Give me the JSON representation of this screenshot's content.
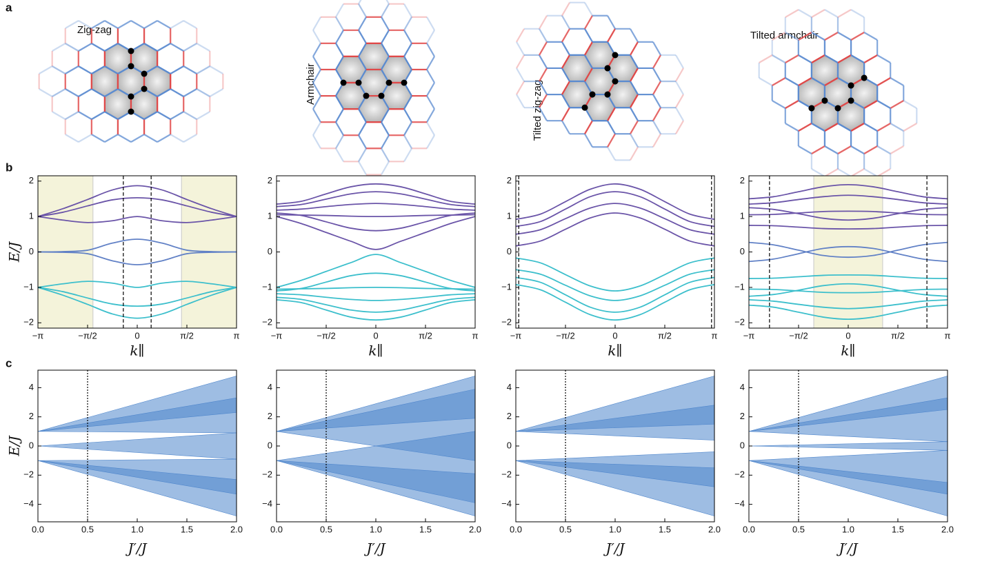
{
  "panel_labels": [
    "a",
    "b",
    "c"
  ],
  "lattices": [
    {
      "label": "Zig-zag"
    },
    {
      "label": "Armchair"
    },
    {
      "label": "Tilted zig-zag"
    },
    {
      "label": "Tilted armchair"
    }
  ],
  "chart_data": [
    {
      "type": "line",
      "ylabel": "E/J",
      "xlabel": "k∥",
      "xlim": [
        -3.1416,
        3.1416
      ],
      "ylim": [
        -2.15,
        2.15
      ],
      "x": [
        -3.1416,
        -2.3562,
        -1.5708,
        -0.7854,
        0,
        0.7854,
        1.5708,
        2.3562,
        3.1416
      ],
      "xticks": [
        {
          "value": -3.1416,
          "label": "−π"
        },
        {
          "value": -1.5708,
          "label": "−π/2"
        },
        0,
        {
          "value": 1.5708,
          "label": "π/2"
        },
        {
          "value": 3.1416,
          "label": "π"
        }
      ],
      "yticks": [
        {
          "value": -2,
          "label": "−2"
        },
        {
          "value": -1,
          "label": "−1"
        },
        0,
        1,
        2
      ],
      "shade": [
        [
          -3.1416,
          -1.4
        ],
        [
          1.4,
          3.1416
        ]
      ],
      "vlines": [
        -0.44,
        0.44
      ],
      "series": [
        {
          "color": "#6a54a8",
          "values": [
            1,
            1.22,
            1.48,
            1.75,
            1.87,
            1.75,
            1.48,
            1.22,
            1
          ]
        },
        {
          "color": "#6a54a8",
          "values": [
            1,
            1.12,
            1.3,
            1.47,
            1.53,
            1.47,
            1.3,
            1.12,
            1
          ]
        },
        {
          "color": "#6a54a8",
          "values": [
            1,
            0.9,
            0.83,
            0.88,
            1.0,
            0.88,
            0.83,
            0.9,
            1
          ]
        },
        {
          "color": "#6181c6",
          "values": [
            0,
            0.01,
            0.05,
            0.25,
            0.36,
            0.25,
            0.05,
            0.01,
            0
          ]
        },
        {
          "color": "#6181c6",
          "values": [
            0,
            -0.01,
            -0.05,
            -0.25,
            -0.36,
            -0.25,
            -0.05,
            -0.01,
            0
          ]
        },
        {
          "color": "#3cbfcc",
          "values": [
            -1,
            -0.9,
            -0.83,
            -0.88,
            -1.0,
            -0.88,
            -0.83,
            -0.9,
            -1
          ]
        },
        {
          "color": "#3cbfcc",
          "values": [
            -1,
            -1.12,
            -1.3,
            -1.47,
            -1.53,
            -1.47,
            -1.3,
            -1.12,
            -1
          ]
        },
        {
          "color": "#3cbfcc",
          "values": [
            -1,
            -1.22,
            -1.48,
            -1.75,
            -1.87,
            -1.75,
            -1.48,
            -1.22,
            -1
          ]
        }
      ]
    },
    {
      "type": "line",
      "xlabel": "k∥",
      "xlim": [
        -3.1416,
        3.1416
      ],
      "ylim": [
        -2.15,
        2.15
      ],
      "x": [
        -3.1416,
        -2.3562,
        -1.5708,
        -0.7854,
        0,
        0.7854,
        1.5708,
        2.3562,
        3.1416
      ],
      "xticks": [
        {
          "value": -3.1416,
          "label": "−π"
        },
        {
          "value": -1.5708,
          "label": "−π/2"
        },
        0,
        {
          "value": 1.5708,
          "label": "π/2"
        },
        {
          "value": 3.1416,
          "label": "π"
        }
      ],
      "yticks": [
        {
          "value": -2,
          "label": "−2"
        },
        {
          "value": -1,
          "label": "−1"
        },
        0,
        1,
        2
      ],
      "series": [
        {
          "color": "#6a54a8",
          "values": [
            1.35,
            1.43,
            1.64,
            1.84,
            1.92,
            1.84,
            1.64,
            1.43,
            1.35
          ]
        },
        {
          "color": "#6a54a8",
          "values": [
            1.28,
            1.34,
            1.49,
            1.64,
            1.7,
            1.64,
            1.49,
            1.34,
            1.28
          ]
        },
        {
          "color": "#6a54a8",
          "values": [
            1.18,
            1.21,
            1.28,
            1.34,
            1.37,
            1.34,
            1.28,
            1.21,
            1.18
          ]
        },
        {
          "color": "#6a54a8",
          "values": [
            1.05,
            1.04,
            1.03,
            1.01,
            1.0,
            1.01,
            1.03,
            1.04,
            1.05
          ]
        },
        {
          "color": "#6a54a8",
          "values": [
            1.1,
            1.03,
            0.85,
            0.67,
            0.6,
            0.67,
            0.85,
            1.03,
            1.1
          ]
        },
        {
          "color": "#6a54a8",
          "values": [
            1.0,
            0.8,
            0.55,
            0.3,
            0.07,
            0.3,
            0.55,
            0.8,
            1.0
          ]
        },
        {
          "color": "#3cbfcc",
          "values": [
            -1.0,
            -0.8,
            -0.55,
            -0.3,
            -0.07,
            -0.3,
            -0.55,
            -0.8,
            -1.0
          ]
        },
        {
          "color": "#3cbfcc",
          "values": [
            -1.1,
            -1.03,
            -0.85,
            -0.67,
            -0.6,
            -0.67,
            -0.85,
            -1.03,
            -1.1
          ]
        },
        {
          "color": "#3cbfcc",
          "values": [
            -1.05,
            -1.04,
            -1.03,
            -1.01,
            -1.0,
            -1.01,
            -1.03,
            -1.04,
            -1.05
          ]
        },
        {
          "color": "#3cbfcc",
          "values": [
            -1.18,
            -1.21,
            -1.28,
            -1.34,
            -1.37,
            -1.34,
            -1.28,
            -1.21,
            -1.18
          ]
        },
        {
          "color": "#3cbfcc",
          "values": [
            -1.28,
            -1.34,
            -1.49,
            -1.64,
            -1.7,
            -1.64,
            -1.49,
            -1.34,
            -1.28
          ]
        },
        {
          "color": "#3cbfcc",
          "values": [
            -1.35,
            -1.43,
            -1.64,
            -1.84,
            -1.92,
            -1.84,
            -1.64,
            -1.43,
            -1.35
          ]
        }
      ]
    },
    {
      "type": "line",
      "xlabel": "k∥",
      "xlim": [
        -3.1416,
        3.1416
      ],
      "ylim": [
        -2.15,
        2.15
      ],
      "x": [
        -3.1416,
        -2.3562,
        -1.5708,
        -0.7854,
        0,
        0.7854,
        1.5708,
        2.3562,
        3.1416
      ],
      "xticks": [
        {
          "value": -3.1416,
          "label": "−π"
        },
        {
          "value": -1.5708,
          "label": "−π/2"
        },
        0,
        {
          "value": 1.5708,
          "label": "π/2"
        },
        {
          "value": 3.1416,
          "label": "π"
        }
      ],
      "yticks": [
        {
          "value": -2,
          "label": "−2"
        },
        {
          "value": -1,
          "label": "−1"
        },
        0,
        1,
        2
      ],
      "vlines": [
        -3.05,
        3.05
      ],
      "series": [
        {
          "color": "#6a54a8",
          "values": [
            0.92,
            1.07,
            1.42,
            1.77,
            1.92,
            1.77,
            1.42,
            1.07,
            0.92
          ]
        },
        {
          "color": "#6a54a8",
          "values": [
            0.72,
            0.86,
            1.21,
            1.56,
            1.7,
            1.56,
            1.21,
            0.86,
            0.72
          ]
        },
        {
          "color": "#6a54a8",
          "values": [
            0.5,
            0.63,
            0.94,
            1.24,
            1.37,
            1.24,
            0.94,
            0.63,
            0.5
          ]
        },
        {
          "color": "#6a54a8",
          "values": [
            0.17,
            0.31,
            0.64,
            0.96,
            1.1,
            0.96,
            0.64,
            0.31,
            0.17
          ]
        },
        {
          "color": "#3cbfcc",
          "values": [
            -0.17,
            -0.31,
            -0.64,
            -0.96,
            -1.1,
            -0.96,
            -0.64,
            -0.31,
            -0.17
          ]
        },
        {
          "color": "#3cbfcc",
          "values": [
            -0.5,
            -0.63,
            -0.94,
            -1.24,
            -1.37,
            -1.24,
            -0.94,
            -0.63,
            -0.5
          ]
        },
        {
          "color": "#3cbfcc",
          "values": [
            -0.72,
            -0.86,
            -1.21,
            -1.56,
            -1.7,
            -1.56,
            -1.21,
            -0.86,
            -0.72
          ]
        },
        {
          "color": "#3cbfcc",
          "values": [
            -0.92,
            -1.07,
            -1.42,
            -1.77,
            -1.92,
            -1.77,
            -1.42,
            -1.07,
            -0.92
          ]
        }
      ]
    },
    {
      "type": "line",
      "xlabel": "k∥",
      "xlim": [
        -3.1416,
        3.1416
      ],
      "ylim": [
        -2.15,
        2.15
      ],
      "x": [
        -3.1416,
        -2.3562,
        -1.5708,
        -0.7854,
        0,
        0.7854,
        1.5708,
        2.3562,
        3.1416
      ],
      "xticks": [
        {
          "value": -3.1416,
          "label": "−π"
        },
        {
          "value": -1.5708,
          "label": "−π/2"
        },
        0,
        {
          "value": 1.5708,
          "label": "π/2"
        },
        {
          "value": 3.1416,
          "label": "π"
        }
      ],
      "yticks": [
        {
          "value": -2,
          "label": "−2"
        },
        {
          "value": -1,
          "label": "−1"
        },
        0,
        1,
        2
      ],
      "shade": [
        [
          -1.09,
          1.09
        ]
      ],
      "vlines": [
        -2.49,
        2.49
      ],
      "series": [
        {
          "color": "#6a54a8",
          "values": [
            1.5,
            1.56,
            1.7,
            1.84,
            1.9,
            1.84,
            1.7,
            1.56,
            1.5
          ]
        },
        {
          "color": "#6a54a8",
          "values": [
            1.35,
            1.39,
            1.48,
            1.56,
            1.6,
            1.56,
            1.48,
            1.39,
            1.35
          ]
        },
        {
          "color": "#6a54a8",
          "values": [
            1.05,
            1.06,
            1.1,
            1.14,
            1.15,
            1.14,
            1.1,
            1.06,
            1.05
          ]
        },
        {
          "color": "#6a54a8",
          "values": [
            1.25,
            1.2,
            1.08,
            0.95,
            0.9,
            0.95,
            1.08,
            1.2,
            1.25
          ]
        },
        {
          "color": "#6a54a8",
          "values": [
            0.75,
            0.74,
            0.7,
            0.66,
            0.65,
            0.66,
            0.7,
            0.74,
            0.75
          ]
        },
        {
          "color": "#6181c6",
          "values": [
            0.27,
            0.2,
            0.05,
            -0.1,
            -0.15,
            -0.1,
            0.05,
            0.2,
            0.27
          ]
        },
        {
          "color": "#6181c6",
          "values": [
            -0.27,
            -0.2,
            -0.05,
            0.1,
            0.15,
            0.1,
            -0.05,
            -0.2,
            -0.27
          ]
        },
        {
          "color": "#3cbfcc",
          "values": [
            -0.75,
            -0.74,
            -0.7,
            -0.66,
            -0.65,
            -0.66,
            -0.7,
            -0.74,
            -0.75
          ]
        },
        {
          "color": "#3cbfcc",
          "values": [
            -1.25,
            -1.2,
            -1.08,
            -0.95,
            -0.9,
            -0.95,
            -1.08,
            -1.2,
            -1.25
          ]
        },
        {
          "color": "#3cbfcc",
          "values": [
            -1.05,
            -1.06,
            -1.1,
            -1.14,
            -1.15,
            -1.14,
            -1.1,
            -1.06,
            -1.05
          ]
        },
        {
          "color": "#3cbfcc",
          "values": [
            -1.35,
            -1.39,
            -1.48,
            -1.56,
            -1.6,
            -1.56,
            -1.48,
            -1.39,
            -1.35
          ]
        },
        {
          "color": "#3cbfcc",
          "values": [
            -1.5,
            -1.56,
            -1.7,
            -1.84,
            -1.9,
            -1.84,
            -1.7,
            -1.56,
            -1.5
          ]
        }
      ]
    },
    {
      "type": "area",
      "ylabel": "E/J",
      "xlabel": "J′/J",
      "color": "#4f86cc",
      "xlim": [
        0,
        2
      ],
      "ylim": [
        -5.2,
        5.2
      ],
      "x": [
        0,
        2
      ],
      "xticks": [
        {
          "value": 0,
          "label": "0.0"
        },
        0.5,
        {
          "value": 1,
          "label": "1.0"
        },
        1.5,
        {
          "value": 2,
          "label": "2.0"
        }
      ],
      "yticks": [
        {
          "value": -4,
          "label": "−4"
        },
        {
          "value": -2,
          "label": "−2"
        },
        0,
        2,
        4
      ],
      "vlines": [
        0.5
      ],
      "bands": [
        {
          "lower": [
            1,
            2.3
          ],
          "upper": [
            1,
            4.8
          ]
        },
        {
          "lower": [
            1,
            0.9
          ],
          "upper": [
            1,
            3.3
          ]
        },
        {
          "lower": [
            0,
            -0.9
          ],
          "upper": [
            0,
            0.9
          ]
        },
        {
          "lower": [
            -1,
            -3.3
          ],
          "upper": [
            -1,
            -0.9
          ]
        },
        {
          "lower": [
            -1,
            -4.8
          ],
          "upper": [
            -1,
            -2.3
          ]
        }
      ]
    },
    {
      "type": "area",
      "xlabel": "J′/J",
      "color": "#4f86cc",
      "xlim": [
        0,
        2
      ],
      "ylim": [
        -5.2,
        5.2
      ],
      "x": [
        0,
        2
      ],
      "xticks": [
        {
          "value": 0,
          "label": "0.0"
        },
        0.5,
        {
          "value": 1,
          "label": "1.0"
        },
        1.5,
        {
          "value": 2,
          "label": "2.0"
        }
      ],
      "yticks": [
        {
          "value": -4,
          "label": "−4"
        },
        {
          "value": -2,
          "label": "−2"
        },
        0,
        2,
        4
      ],
      "vlines": [
        0.5
      ],
      "bands": [
        {
          "lower": [
            1,
            1.9
          ],
          "upper": [
            1,
            4.8
          ]
        },
        {
          "lower": [
            1,
            -1
          ],
          "upper": [
            1,
            3.9
          ]
        },
        {
          "lower": [
            -1,
            -3.9
          ],
          "upper": [
            -1,
            1
          ]
        },
        {
          "lower": [
            -1,
            -4.8
          ],
          "upper": [
            -1,
            -1.9
          ]
        }
      ]
    },
    {
      "type": "area",
      "xlabel": "J′/J",
      "color": "#4f86cc",
      "xlim": [
        0,
        2
      ],
      "ylim": [
        -5.2,
        5.2
      ],
      "x": [
        0,
        2
      ],
      "xticks": [
        {
          "value": 0,
          "label": "0.0"
        },
        0.5,
        {
          "value": 1,
          "label": "1.0"
        },
        1.5,
        {
          "value": 2,
          "label": "2.0"
        }
      ],
      "yticks": [
        {
          "value": -4,
          "label": "−4"
        },
        {
          "value": -2,
          "label": "−2"
        },
        0,
        2,
        4
      ],
      "vlines": [
        0.5
      ],
      "bands": [
        {
          "lower": [
            1,
            0.4
          ],
          "upper": [
            1,
            4.8
          ]
        },
        {
          "lower": [
            1,
            1.5
          ],
          "upper": [
            1,
            2.8
          ]
        },
        {
          "lower": [
            -1,
            -4.8
          ],
          "upper": [
            -1,
            -0.4
          ]
        },
        {
          "lower": [
            -1,
            -2.8
          ],
          "upper": [
            -1,
            -1.5
          ]
        }
      ]
    },
    {
      "type": "area",
      "xlabel": "J′/J",
      "color": "#4f86cc",
      "xlim": [
        0,
        2
      ],
      "ylim": [
        -5.2,
        5.2
      ],
      "x": [
        0,
        2
      ],
      "xticks": [
        {
          "value": 0,
          "label": "0.0"
        },
        0.5,
        {
          "value": 1,
          "label": "1.0"
        },
        1.5,
        {
          "value": 2,
          "label": "2.0"
        }
      ],
      "yticks": [
        {
          "value": -4,
          "label": "−4"
        },
        {
          "value": -2,
          "label": "−2"
        },
        0,
        2,
        4
      ],
      "vlines": [
        0.5
      ],
      "bands": [
        {
          "lower": [
            1,
            0.3
          ],
          "upper": [
            1,
            4.8
          ]
        },
        {
          "lower": [
            1,
            2.5
          ],
          "upper": [
            1,
            3.3
          ]
        },
        {
          "lower": [
            0,
            -0.3
          ],
          "upper": [
            0,
            0.3
          ]
        },
        {
          "lower": [
            -1,
            -4.8
          ],
          "upper": [
            -1,
            -0.3
          ]
        },
        {
          "lower": [
            -1,
            -3.3
          ],
          "upper": [
            -1,
            -2.5
          ]
        }
      ]
    }
  ]
}
